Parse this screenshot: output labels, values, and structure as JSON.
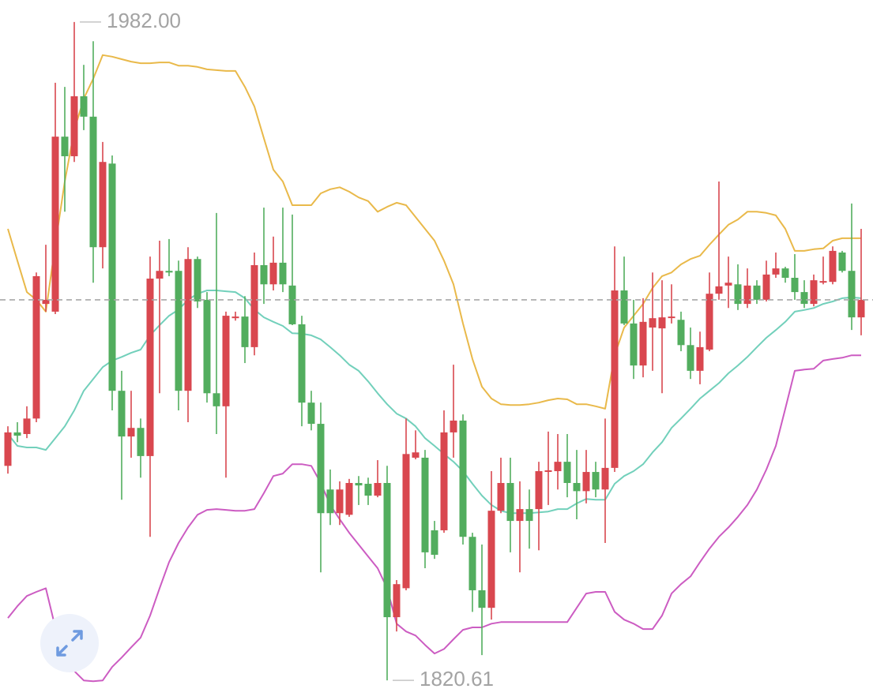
{
  "chart_data": {
    "type": "candlestick",
    "ylim": [
      1815.8,
      1987.4
    ],
    "up_color": "#d9474f",
    "down_color": "#52ad5e",
    "candles": {
      "open": [
        1873.2,
        1881.4,
        1881.0,
        1884.8,
        1912.9,
        1911.0,
        1953.9,
        1949.1,
        1963.8,
        1958.8,
        1926.8,
        1947.3,
        1891.6,
        1880.4,
        1882.5,
        1875.6,
        1919.1,
        1921.0,
        1921.0,
        1891.6,
        1923.9,
        1913.9,
        1891.0,
        1887.8,
        1909.4,
        1909.8,
        1902.3,
        1922.4,
        1917.7,
        1923.0,
        1917.4,
        1907.9,
        1888.7,
        1883.5,
        1867.4,
        1861.6,
        1861.2,
        1869.0,
        1868.8,
        1865.9,
        1869.0,
        1836.1,
        1843.2,
        1875.2,
        1875.2,
        1857.4,
        1857.4,
        1881.4,
        1884.3,
        1855.8,
        1842.7,
        1838.4,
        1862.2,
        1869.0,
        1859.7,
        1862.6,
        1862.6,
        1871.9,
        1871.9,
        1874.2,
        1869.0,
        1867.0,
        1871.7,
        1867.4,
        1872.7,
        1916.2,
        1908.1,
        1897.8,
        1907.1,
        1906.9,
        1909.6,
        1909.0,
        1902.8,
        1896.5,
        1901.7,
        1915.4,
        1917.4,
        1917.7,
        1912.9,
        1917.4,
        1913.9,
        1920.1,
        1921.6,
        1919.3,
        1915.8,
        1912.9,
        1918.3,
        1918.3,
        1925.5,
        1921.0,
        1909.6
      ],
      "high": [
        1882.9,
        1883.9,
        1887.8,
        1920.6,
        1927.4,
        1967.1,
        1966.1,
        1982.0,
        1971.5,
        1977.3,
        1952.6,
        1949.3,
        1896.5,
        1891.6,
        1884.8,
        1924.5,
        1928.4,
        1928.8,
        1923.5,
        1926.8,
        1924.5,
        1915.8,
        1935.2,
        1911.0,
        1911.0,
        1914.8,
        1925.5,
        1936.5,
        1929.4,
        1936.5,
        1934.8,
        1910.0,
        1891.6,
        1888.7,
        1872.3,
        1869.4,
        1870.0,
        1870.7,
        1870.3,
        1874.6,
        1873.2,
        1845.2,
        1884.8,
        1881.9,
        1877.1,
        1859.7,
        1886.8,
        1898.0,
        1885.8,
        1856.8,
        1853.9,
        1871.9,
        1875.2,
        1875.2,
        1869.4,
        1867.4,
        1874.2,
        1881.6,
        1881.0,
        1881.0,
        1877.1,
        1877.1,
        1874.2,
        1884.8,
        1927.0,
        1924.5,
        1913.9,
        1914.3,
        1920.6,
        1918.7,
        1917.7,
        1911.0,
        1907.1,
        1906.1,
        1920.6,
        1942.9,
        1924.5,
        1922.6,
        1921.6,
        1918.7,
        1923.5,
        1925.5,
        1922.0,
        1925.1,
        1918.7,
        1920.1,
        1924.5,
        1927.0,
        1925.9,
        1937.5,
        1931.3
      ],
      "low": [
        1871.3,
        1879.0,
        1880.0,
        1883.9,
        1911.0,
        1910.4,
        1935.5,
        1947.7,
        1955.5,
        1918.1,
        1921.6,
        1886.8,
        1864.9,
        1875.2,
        1870.3,
        1855.8,
        1891.0,
        1919.7,
        1886.8,
        1883.9,
        1911.9,
        1888.7,
        1881.0,
        1870.3,
        1908.8,
        1898.4,
        1900.3,
        1912.9,
        1916.2,
        1915.8,
        1907.7,
        1882.9,
        1881.9,
        1847.1,
        1858.7,
        1858.7,
        1860.7,
        1863.6,
        1863.6,
        1865.5,
        1820.61,
        1832.6,
        1842.7,
        1874.8,
        1848.1,
        1850.4,
        1856.8,
        1875.2,
        1853.9,
        1837.4,
        1826.8,
        1835.5,
        1861.6,
        1852.0,
        1847.1,
        1852.9,
        1852.5,
        1863.6,
        1867.4,
        1865.5,
        1860.1,
        1864.0,
        1865.5,
        1854.3,
        1871.7,
        1907.7,
        1894.5,
        1894.9,
        1896.5,
        1891.0,
        1908.1,
        1901.3,
        1894.5,
        1893.2,
        1901.3,
        1913.9,
        1911.9,
        1911.4,
        1911.9,
        1912.9,
        1913.5,
        1919.3,
        1918.1,
        1913.9,
        1911.9,
        1912.3,
        1917.7,
        1917.7,
        1920.6,
        1906.5,
        1905.2
      ],
      "close": [
        1881.4,
        1880.6,
        1884.8,
        1919.7,
        1913.9,
        1953.9,
        1949.1,
        1963.8,
        1958.8,
        1926.8,
        1947.7,
        1891.6,
        1880.4,
        1882.5,
        1875.6,
        1919.1,
        1921.0,
        1920.6,
        1891.6,
        1923.9,
        1913.5,
        1891.0,
        1887.8,
        1910.0,
        1909.8,
        1902.3,
        1922.4,
        1917.7,
        1923.0,
        1917.7,
        1907.9,
        1888.7,
        1883.5,
        1861.6,
        1861.6,
        1867.4,
        1869.0,
        1868.4,
        1865.9,
        1869.0,
        1836.1,
        1844.2,
        1876.1,
        1876.5,
        1852.0,
        1851.4,
        1881.4,
        1884.3,
        1855.8,
        1842.7,
        1838.4,
        1862.2,
        1869.0,
        1859.7,
        1862.6,
        1859.7,
        1871.9,
        1872.1,
        1874.2,
        1869.0,
        1867.0,
        1871.7,
        1867.4,
        1872.7,
        1916.2,
        1908.1,
        1897.8,
        1908.5,
        1909.4,
        1909.6,
        1909.8,
        1902.8,
        1896.5,
        1902.3,
        1915.4,
        1917.2,
        1918.1,
        1912.9,
        1917.4,
        1913.9,
        1920.1,
        1921.6,
        1919.3,
        1915.8,
        1912.9,
        1918.7,
        1918.5,
        1925.9,
        1921.0,
        1909.6,
        1913.9
      ]
    },
    "bands": [
      {
        "color": "#e9b94a",
        "values": [
          1931.3,
          1923.5,
          1915.8,
          1913.9,
          1911.0,
          1927.4,
          1942.9,
          1955.5,
          1963.2,
          1968.1,
          1973.9,
          1973.5,
          1972.9,
          1972.3,
          1971.9,
          1971.9,
          1972.1,
          1972.1,
          1971.3,
          1971.3,
          1971.0,
          1970.4,
          1970.2,
          1970.0,
          1970.0,
          1966.1,
          1961.3,
          1953.5,
          1945.8,
          1942.9,
          1937.1,
          1937.1,
          1937.1,
          1940.0,
          1941.0,
          1941.5,
          1940.4,
          1939.0,
          1938.1,
          1935.5,
          1936.7,
          1937.7,
          1937.1,
          1934.2,
          1931.3,
          1928.4,
          1923.5,
          1917.7,
          1908.1,
          1899.4,
          1892.6,
          1889.7,
          1888.3,
          1888.1,
          1888.1,
          1888.3,
          1888.7,
          1889.3,
          1889.7,
          1889.5,
          1888.3,
          1888.3,
          1887.8,
          1887.2,
          1900.3,
          1907.1,
          1910.0,
          1912.9,
          1916.8,
          1919.7,
          1920.6,
          1922.6,
          1923.9,
          1924.7,
          1927.4,
          1929.9,
          1932.3,
          1933.6,
          1935.5,
          1935.5,
          1935.2,
          1934.6,
          1931.3,
          1925.9,
          1925.9,
          1926.3,
          1926.5,
          1928.4,
          1929.0,
          1929.0,
          1929.0
        ]
      },
      {
        "color": "#72d0bb",
        "values": [
          1881.0,
          1878.1,
          1877.7,
          1877.7,
          1877.1,
          1880.0,
          1882.9,
          1886.8,
          1891.6,
          1894.5,
          1897.4,
          1899.0,
          1899.9,
          1900.9,
          1901.7,
          1905.2,
          1907.7,
          1910.0,
          1911.5,
          1913.9,
          1915.4,
          1916.2,
          1916.2,
          1916.0,
          1915.8,
          1914.3,
          1911.5,
          1909.6,
          1908.5,
          1907.5,
          1905.7,
          1905.6,
          1905.2,
          1904.2,
          1902.3,
          1900.3,
          1898.0,
          1896.5,
          1893.9,
          1891.0,
          1888.3,
          1886.0,
          1884.8,
          1882.9,
          1880.0,
          1878.1,
          1876.1,
          1874.2,
          1871.9,
          1868.8,
          1865.9,
          1863.6,
          1862.2,
          1861.6,
          1861.6,
          1861.6,
          1861.8,
          1862.0,
          1862.6,
          1862.6,
          1864.0,
          1865.1,
          1864.9,
          1864.9,
          1868.8,
          1870.7,
          1871.9,
          1873.6,
          1876.5,
          1879.0,
          1882.5,
          1884.8,
          1887.2,
          1889.7,
          1891.6,
          1893.5,
          1895.9,
          1897.8,
          1899.9,
          1902.3,
          1904.6,
          1906.5,
          1908.5,
          1911.0,
          1911.4,
          1911.9,
          1912.9,
          1913.5,
          1914.3,
          1914.5,
          1914.3
        ]
      },
      {
        "color": "#cc5cc2",
        "values": [
          1835.9,
          1838.8,
          1841.3,
          1842.3,
          1843.2,
          1833.6,
          1827.8,
          1822.9,
          1820.6,
          1820.4,
          1820.6,
          1823.9,
          1826.2,
          1828.7,
          1831.1,
          1836.5,
          1843.2,
          1849.6,
          1854.3,
          1858.1,
          1861.2,
          1862.4,
          1862.6,
          1862.4,
          1862.2,
          1862.2,
          1862.6,
          1866.5,
          1870.7,
          1871.3,
          1873.6,
          1873.6,
          1873.2,
          1869.0,
          1863.6,
          1860.1,
          1856.8,
          1853.9,
          1851.0,
          1848.1,
          1843.2,
          1834.5,
          1832.6,
          1831.6,
          1829.3,
          1827.2,
          1828.3,
          1830.7,
          1833.0,
          1833.6,
          1833.6,
          1834.5,
          1834.9,
          1834.9,
          1834.9,
          1834.9,
          1834.9,
          1834.9,
          1834.9,
          1834.9,
          1838.4,
          1841.9,
          1842.3,
          1842.3,
          1837.4,
          1835.5,
          1834.5,
          1833.2,
          1833.2,
          1836.5,
          1841.9,
          1844.2,
          1846.1,
          1849.6,
          1852.9,
          1855.8,
          1858.1,
          1860.7,
          1863.6,
          1867.4,
          1872.3,
          1878.1,
          1887.2,
          1896.5,
          1896.8,
          1897.0,
          1899.0,
          1899.4,
          1899.7,
          1900.3,
          1900.3
        ]
      }
    ],
    "annotations": [
      {
        "value": 1982.0,
        "label": "1982.00"
      },
      {
        "value": 1820.61,
        "label": "1820.61"
      }
    ]
  }
}
